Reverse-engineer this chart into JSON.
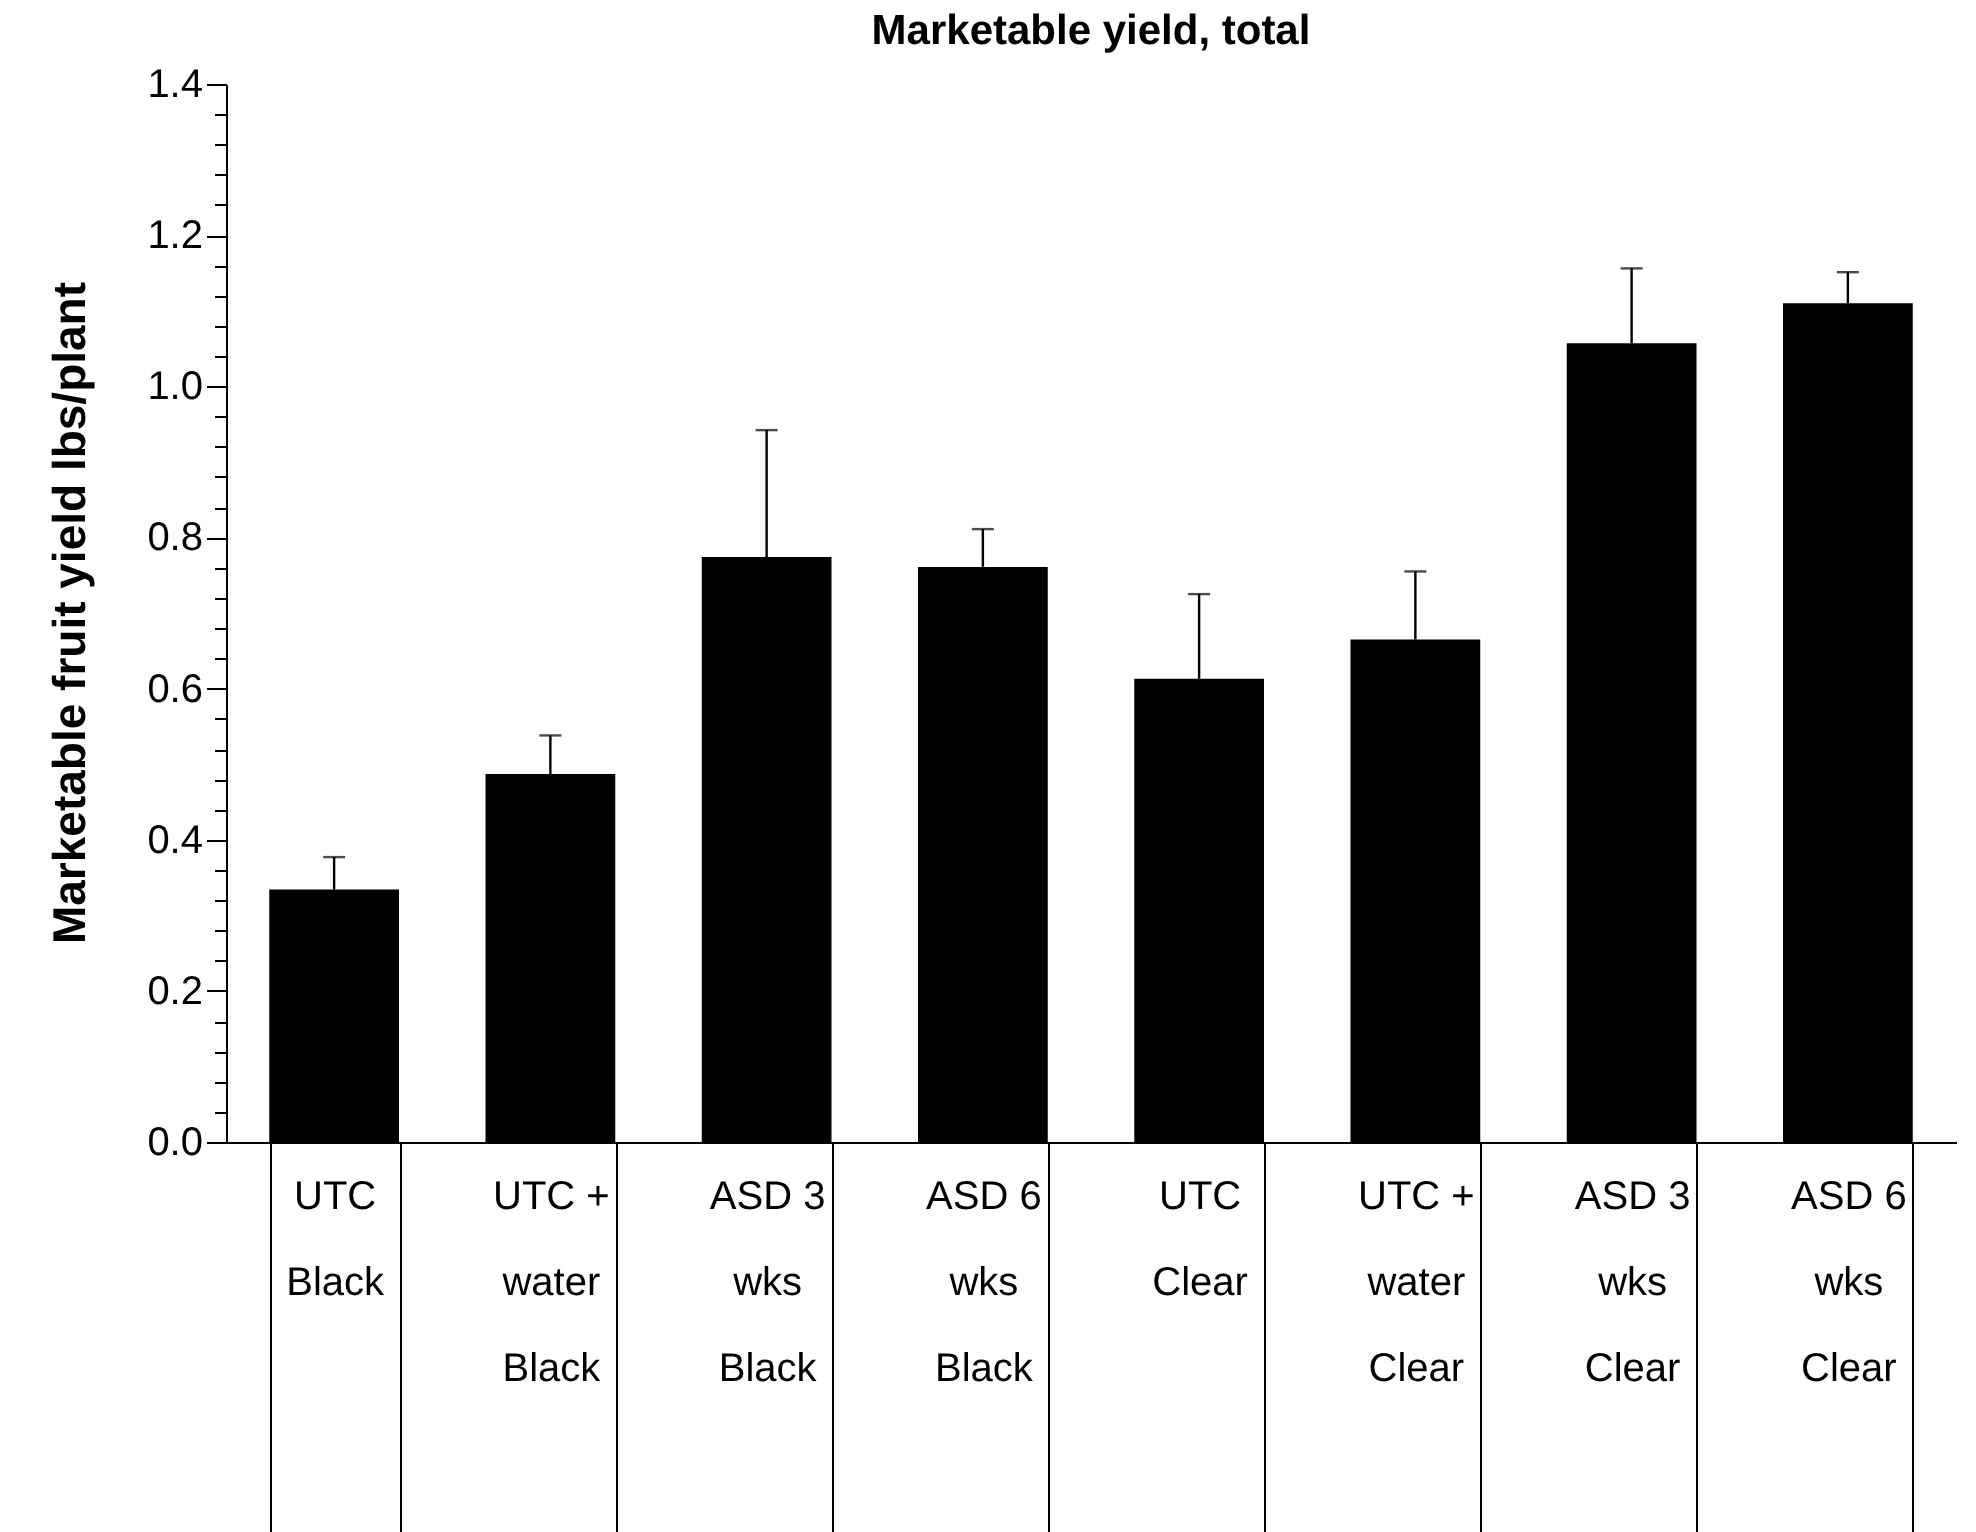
{
  "chart_data": {
    "type": "bar",
    "title": "Marketable yield, total",
    "ylabel": "Marketable fruit yield lbs/plant",
    "categories": [
      "UTC\nBlack",
      "UTC +\nwater\nBlack",
      "ASD 3\nwks\nBlack",
      "ASD 6\nwks\nBlack",
      "UTC\nClear",
      "UTC +\nwater\nClear",
      "ASD 3\nwks\nClear",
      "ASD 6\nwks\nClear"
    ],
    "values": [
      0.334,
      0.487,
      0.774,
      0.761,
      0.613,
      0.665,
      1.057,
      1.11
    ],
    "errors": [
      [
        0.334,
        0.377
      ],
      [
        0.487,
        0.538
      ],
      [
        0.774,
        0.942
      ],
      [
        0.761,
        0.811
      ],
      [
        0.613,
        0.725
      ],
      [
        0.665,
        0.755
      ],
      [
        1.057,
        1.156
      ],
      [
        1.11,
        1.151
      ]
    ],
    "color": "#000000",
    "ylim": [
      0,
      1.4
    ],
    "yticks": [
      {
        "value": 0,
        "label": "0.0"
      },
      {
        "value": 0.04,
        "label": null
      },
      {
        "value": 0.08,
        "label": null
      },
      {
        "value": 0.12,
        "label": null
      },
      {
        "value": 0.16,
        "label": null
      },
      {
        "value": 0.2,
        "label": "0.2"
      },
      {
        "value": 0.24,
        "label": null
      },
      {
        "value": 0.28,
        "label": null
      },
      {
        "value": 0.32,
        "label": null
      },
      {
        "value": 0.36,
        "label": null
      },
      {
        "value": 0.4,
        "label": "0.4"
      },
      {
        "value": 0.44,
        "label": null
      },
      {
        "value": 0.48,
        "label": null
      },
      {
        "value": 0.52,
        "label": null
      },
      {
        "value": 0.56,
        "label": null
      },
      {
        "value": 0.6,
        "label": "0.6"
      },
      {
        "value": 0.64,
        "label": null
      },
      {
        "value": 0.68,
        "label": null
      },
      {
        "value": 0.72,
        "label": null
      },
      {
        "value": 0.76,
        "label": null
      },
      {
        "value": 0.8,
        "label": "0.8"
      },
      {
        "value": 0.84,
        "label": null
      },
      {
        "value": 0.88,
        "label": null
      },
      {
        "value": 0.92,
        "label": null
      },
      {
        "value": 0.96,
        "label": null
      },
      {
        "value": 1.0,
        "label": "1.0"
      },
      {
        "value": 1.04,
        "label": null
      },
      {
        "value": 1.08,
        "label": null
      },
      {
        "value": 1.12,
        "label": null
      },
      {
        "value": 1.16,
        "label": null
      },
      {
        "value": 1.2,
        "label": "1.2"
      },
      {
        "value": 1.24,
        "label": null
      },
      {
        "value": 1.28,
        "label": null
      },
      {
        "value": 1.32,
        "label": null
      },
      {
        "value": 1.36,
        "label": null
      },
      {
        "value": 1.4,
        "label": "1.4"
      }
    ],
    "grid": false
  }
}
